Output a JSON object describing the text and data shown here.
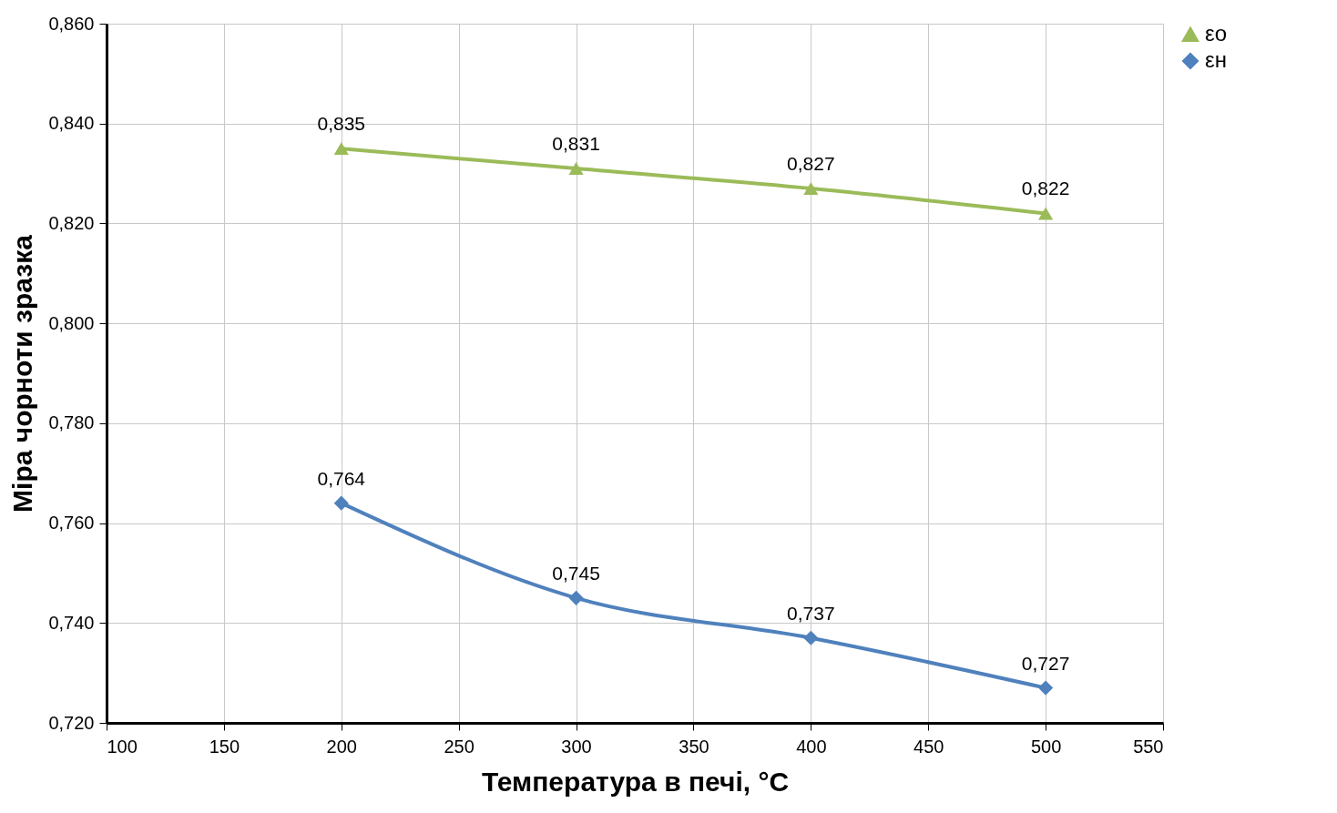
{
  "chart_data": {
    "type": "line",
    "xlabel": "Температура в печі, °C",
    "ylabel": "Міра чорноти зразка",
    "x": [
      200,
      300,
      400,
      500
    ],
    "series": [
      {
        "name": "εо",
        "color": "#9bbb59",
        "marker": "triangle",
        "values": [
          0.835,
          0.831,
          0.827,
          0.822
        ],
        "value_labels": [
          "0,835",
          "0,831",
          "0,827",
          "0,822"
        ]
      },
      {
        "name": "εн",
        "color": "#4f81bd",
        "marker": "diamond",
        "values": [
          0.764,
          0.745,
          0.737,
          0.727
        ],
        "value_labels": [
          "0,764",
          "0,745",
          "0,737",
          "0,727"
        ]
      }
    ],
    "xlim": [
      100,
      550
    ],
    "xticks": [
      100,
      150,
      200,
      250,
      300,
      350,
      400,
      450,
      500,
      550
    ],
    "ylim": [
      0.72,
      0.86
    ],
    "yticks": [
      {
        "value": 0.72,
        "label": "0,720"
      },
      {
        "value": 0.74,
        "label": "0,740"
      },
      {
        "value": 0.76,
        "label": "0,760"
      },
      {
        "value": 0.78,
        "label": "0,780"
      },
      {
        "value": 0.8,
        "label": "0,800"
      },
      {
        "value": 0.82,
        "label": "0,820"
      },
      {
        "value": 0.84,
        "label": "0,840"
      },
      {
        "value": 0.86,
        "label": "0,860"
      }
    ],
    "grid": true,
    "legend": "right",
    "line_style": "solid"
  }
}
